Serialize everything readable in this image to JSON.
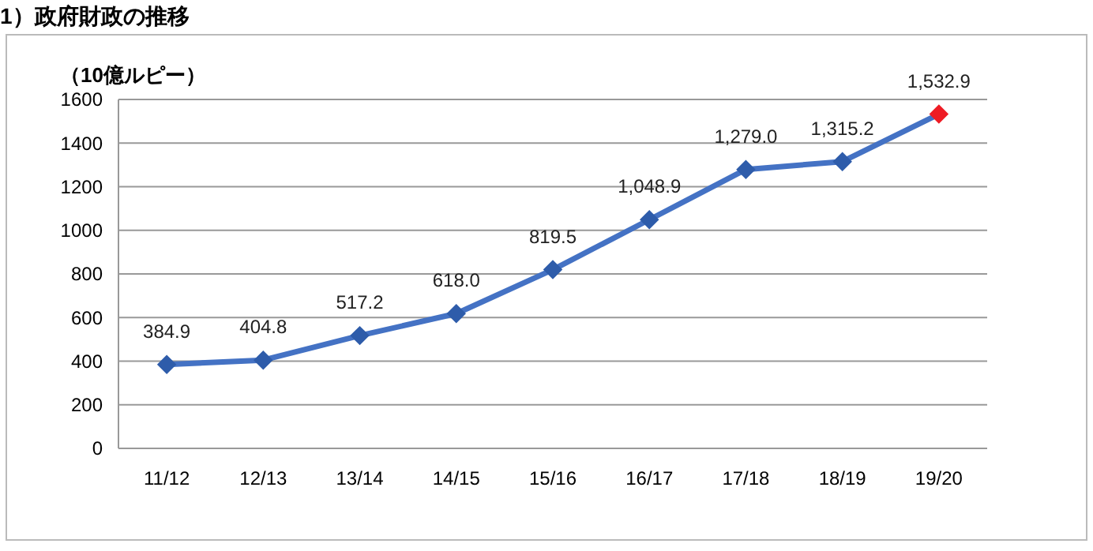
{
  "chart_data": {
    "type": "line",
    "title": "1）政府財政の推移",
    "ylabel": "（10億ルピー）",
    "categories": [
      "11/12",
      "12/13",
      "13/14",
      "14/15",
      "15/16",
      "16/17",
      "17/18",
      "18/19",
      "19/20"
    ],
    "series": [
      {
        "color": "#4472c4",
        "colors": [
          "#2e5caa",
          "#2e5caa",
          "#2e5caa",
          "#2e5caa",
          "#2e5caa",
          "#2e5caa",
          "#2e5caa",
          "#2e5caa",
          "#ee1c25"
        ],
        "values": [
          384.9,
          404.8,
          517.2,
          618.0,
          819.5,
          1048.9,
          1279.0,
          1315.2,
          1532.9
        ],
        "value_labels": [
          "384.9",
          "404.8",
          "517.2",
          "618.0",
          "819.5",
          "1,048.9",
          "1,279.0",
          "1,315.2",
          "1,532.9"
        ]
      }
    ],
    "ylim": [
      0,
      1600
    ],
    "yticks": [
      0,
      200,
      400,
      600,
      800,
      1000,
      1200,
      1400,
      1600
    ],
    "grid": "y",
    "marker": "diamond",
    "line_style": "solid"
  }
}
